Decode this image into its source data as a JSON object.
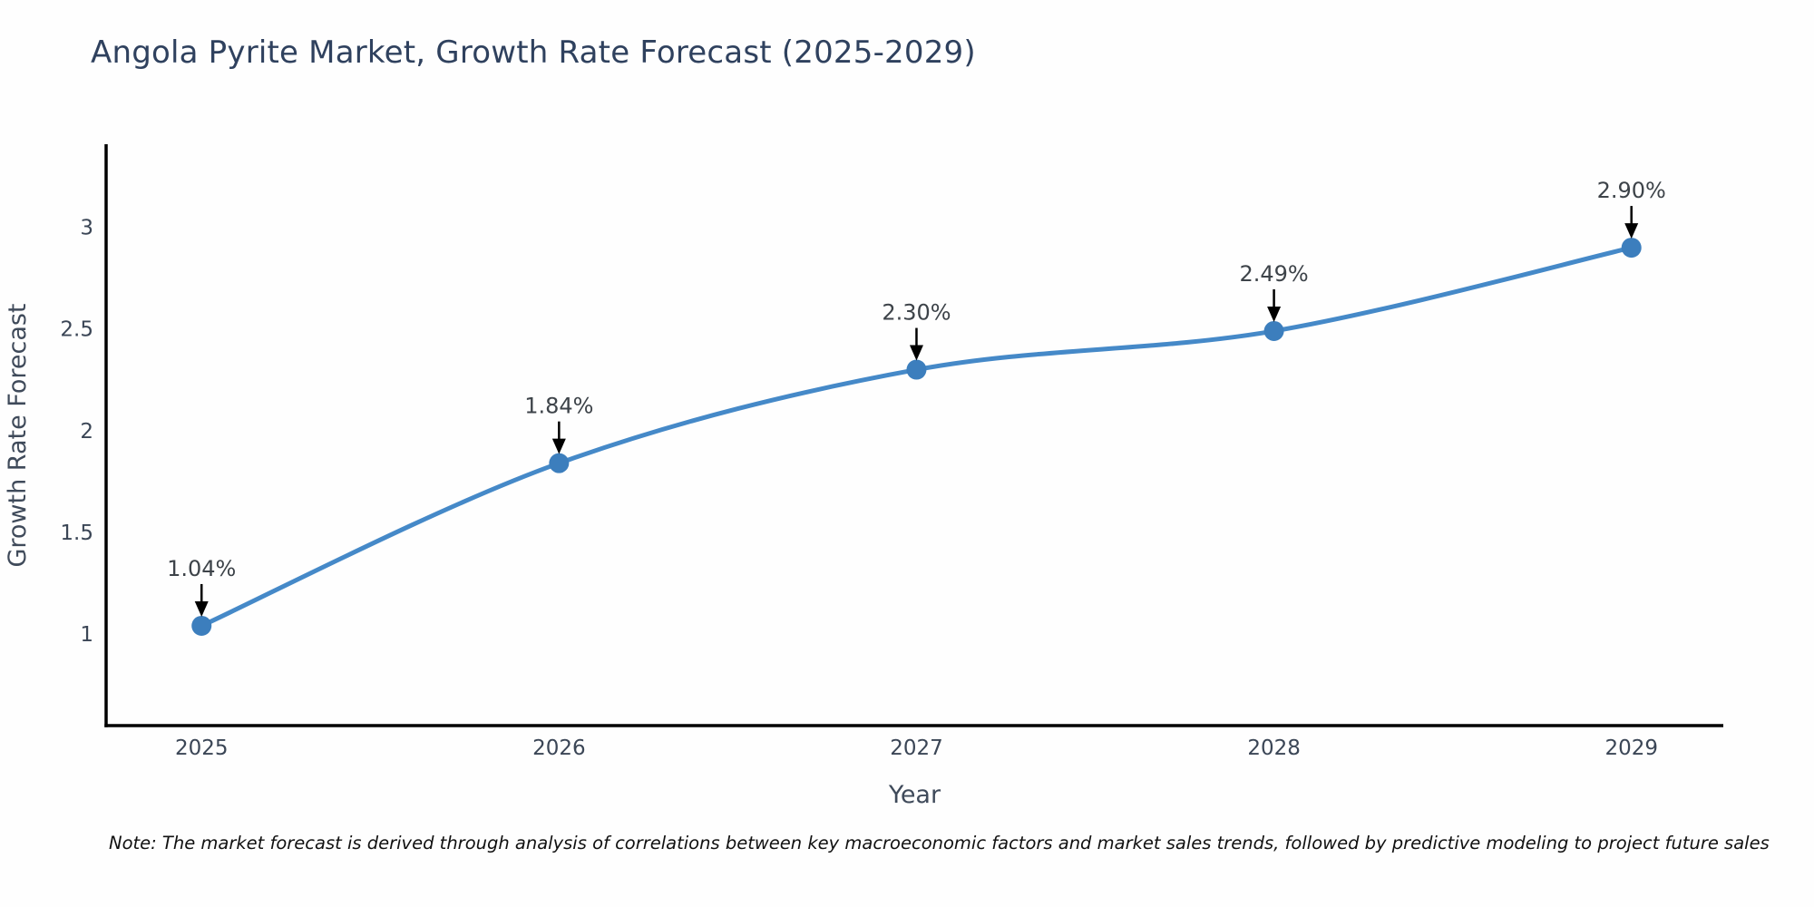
{
  "title": "Angola Pyrite Market, Growth Rate Forecast (2025-2029)",
  "note": "Note: The market forecast is derived through analysis of correlations between key macroeconomic factors and market sales trends, followed by predictive modeling to project future sales",
  "chart_data": {
    "type": "line",
    "title": "Angola Pyrite Market, Growth Rate Forecast (2025-2029)",
    "xlabel": "Year",
    "ylabel": "Growth Rate Forecast",
    "x": [
      2025,
      2026,
      2027,
      2028,
      2029
    ],
    "y": [
      1.04,
      1.84,
      2.3,
      2.49,
      2.9
    ],
    "point_labels": [
      "1.04%",
      "1.84%",
      "2.30%",
      "2.49%",
      "2.90%"
    ],
    "xtick_labels": [
      "2025",
      "2026",
      "2027",
      "2028",
      "2029"
    ],
    "xtick_values": [
      2025,
      2026,
      2027,
      2028,
      2029
    ],
    "ytick_labels": [
      "1",
      "1.5",
      "2",
      "2.5",
      "3"
    ],
    "ytick_values": [
      1,
      1.5,
      2,
      2.5,
      3
    ],
    "xlim": [
      2024.733,
      2029.257
    ],
    "ylim": [
      0.549,
      3.409
    ],
    "grid": false,
    "legend": "none",
    "line_color": "#4589c8",
    "marker_color": "#3c7ebd",
    "arrow_color": "#000000",
    "spine_color": "#000000"
  },
  "colors": {
    "title": "#2f415e",
    "tick_label": "#3b4656",
    "axis_label": "#3f4a5a",
    "annotation_text": "#3d4349",
    "note_text": "#111111"
  }
}
